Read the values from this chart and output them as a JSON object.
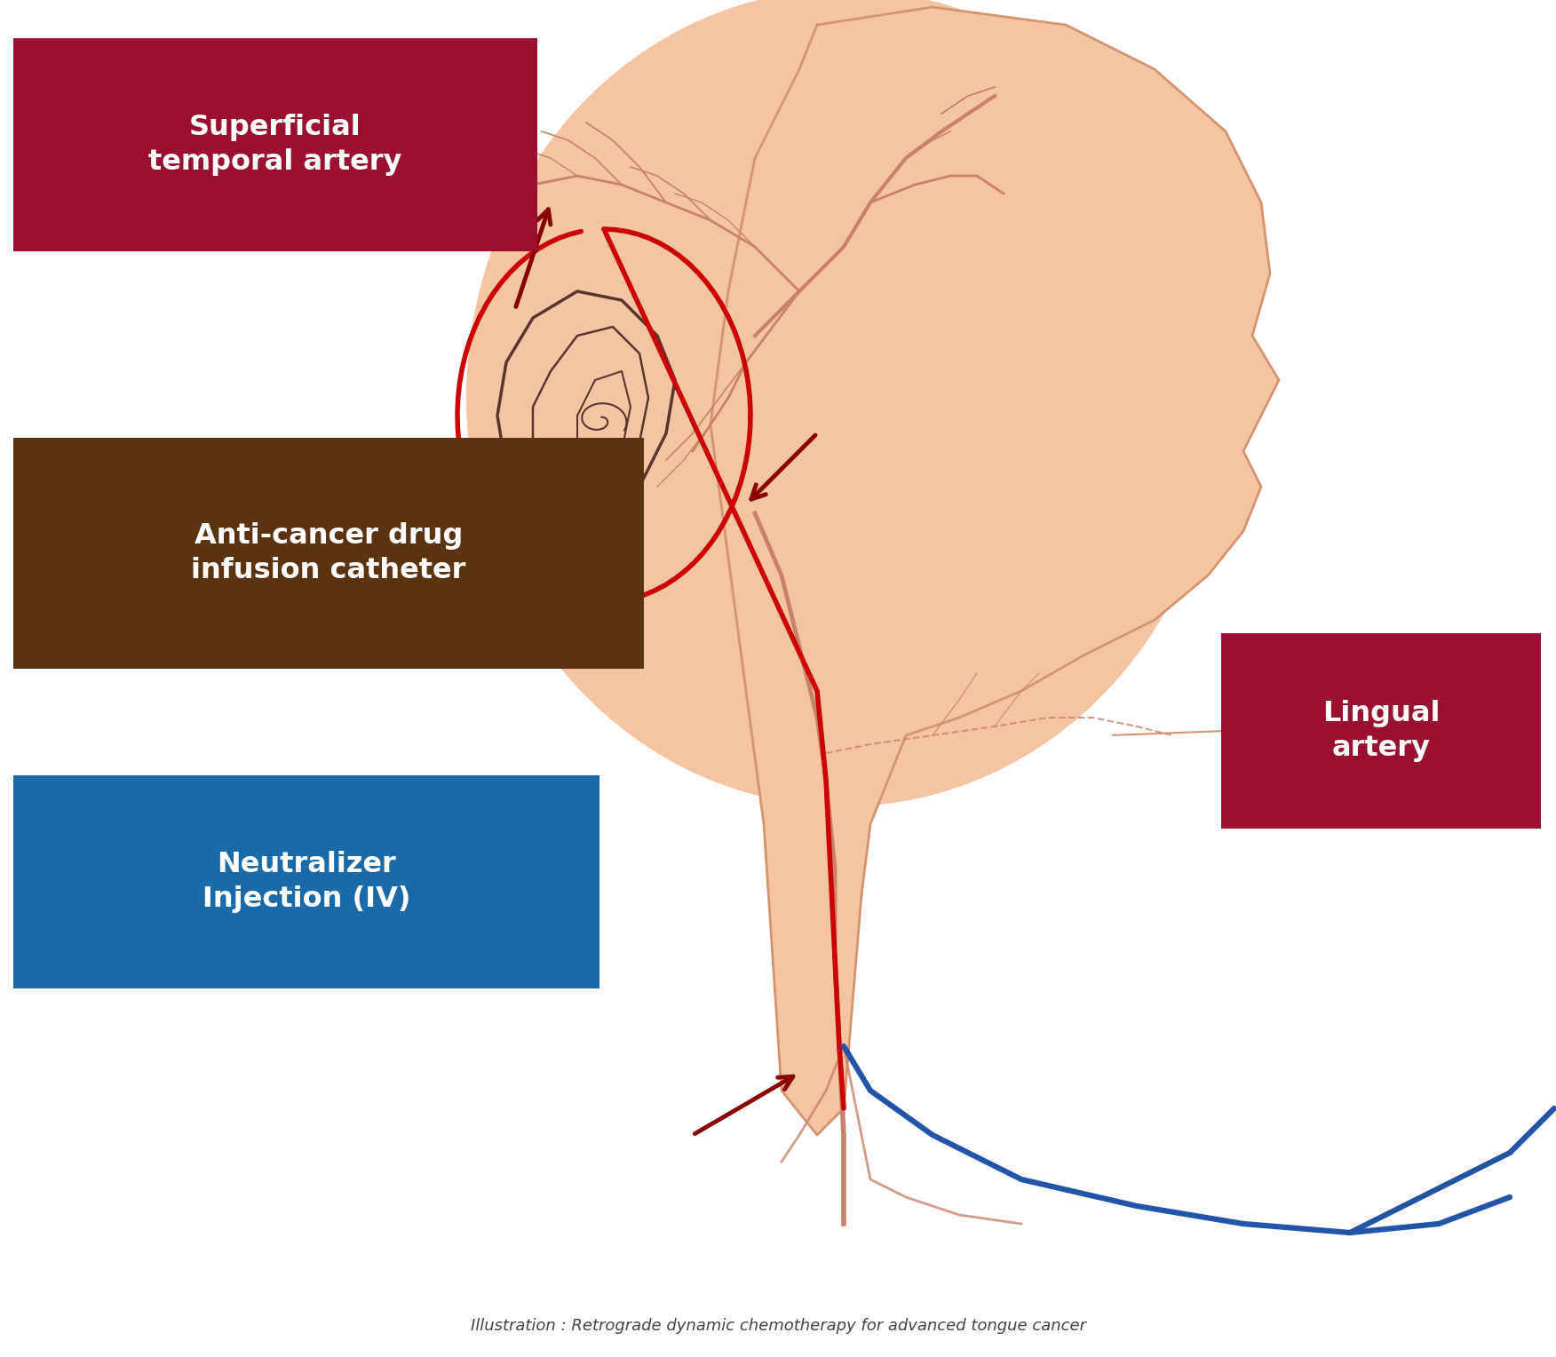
{
  "title": "Illustration : Retrograde dynamic chemotherapy for advanced tongue cancer",
  "bg_color": "#ffffff",
  "skin_color": "#f5c5a3",
  "skin_dark": "#d4956e",
  "artery_color": "#c8826a",
  "artery_dark": "#b06050",
  "red_line_color": "#cc0000",
  "dark_red_color": "#880000",
  "blue_line_color": "#2255aa",
  "brown_box_color": "#5c3310",
  "dark_red_box_color": "#9b1030",
  "blue_box_color": "#1a6aaa",
  "white_text": "#ffffff",
  "label1": "Superficial\ntemporal artery",
  "label2": "Anti-cancer drug\ninfusion catheter",
  "label3": "Neutralizer\nInjection (IV)",
  "label4": "Lingual\nartery",
  "ear_color": "#5a3530"
}
